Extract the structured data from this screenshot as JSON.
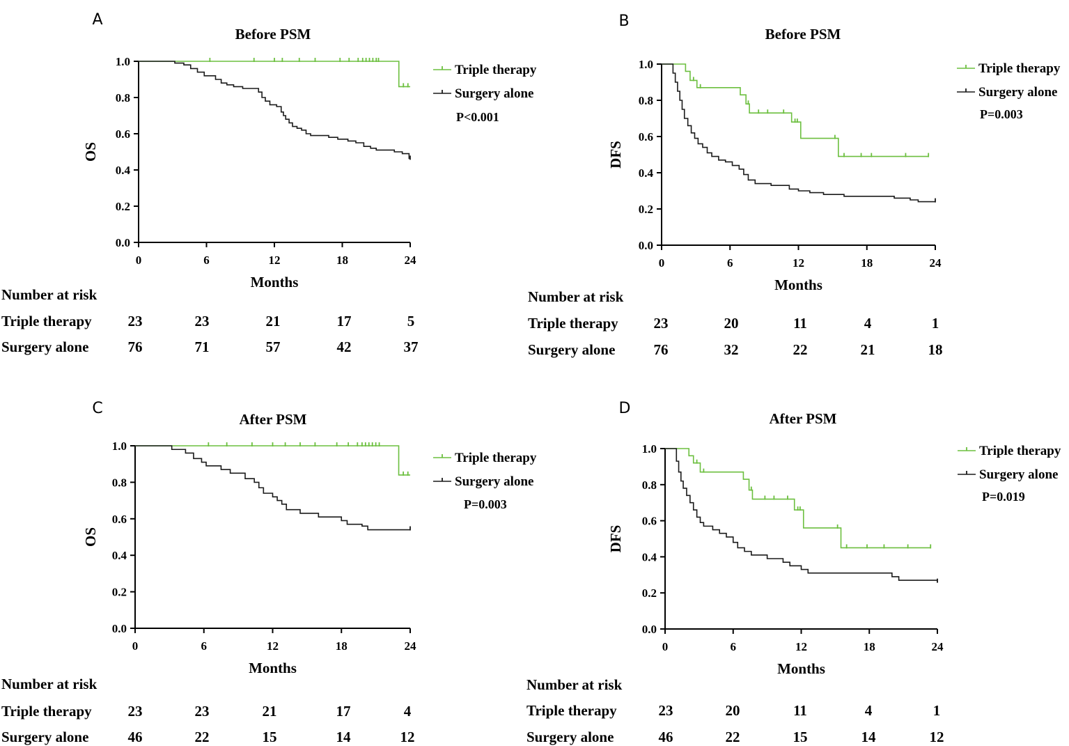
{
  "chart_data": [
    {
      "type": "line",
      "panel": "A",
      "title": "Before PSM",
      "xlabel": "Months",
      "ylabel": "OS",
      "xlim": [
        0,
        24
      ],
      "ylim": [
        0.0,
        1.0
      ],
      "xticks": [
        "0",
        "6",
        "12",
        "18",
        "24"
      ],
      "yticks": [
        "0.0",
        "0.2",
        "0.4",
        "0.6",
        "0.8",
        "1.0"
      ],
      "pvalue": "P<0.001",
      "risk_title": "Number at risk",
      "series": [
        {
          "name": "Triple therapy",
          "color": "#6cbf3f",
          "steps": [
            [
              0,
              1.0
            ],
            [
              23.0,
              0.86
            ],
            [
              24,
              0.86
            ]
          ],
          "censor": [
            6.3,
            10.2,
            12.0,
            12.7,
            14.2,
            15.6,
            17.8,
            18.6,
            19.4,
            19.8,
            20.1,
            20.4,
            20.7,
            21.0,
            21.2,
            23.4,
            23.8
          ]
        },
        {
          "name": "Surgery alone",
          "color": "#1a1a1a",
          "steps": [
            [
              0,
              1.0
            ],
            [
              3.2,
              0.99
            ],
            [
              4.0,
              0.98
            ],
            [
              4.6,
              0.96
            ],
            [
              5.2,
              0.94
            ],
            [
              5.8,
              0.92
            ],
            [
              6.8,
              0.9
            ],
            [
              7.3,
              0.88
            ],
            [
              7.8,
              0.87
            ],
            [
              8.4,
              0.86
            ],
            [
              9.2,
              0.85
            ],
            [
              10.6,
              0.83
            ],
            [
              10.9,
              0.8
            ],
            [
              11.2,
              0.78
            ],
            [
              11.6,
              0.76
            ],
            [
              12.2,
              0.75
            ],
            [
              12.6,
              0.72
            ],
            [
              12.8,
              0.7
            ],
            [
              13.0,
              0.68
            ],
            [
              13.3,
              0.66
            ],
            [
              13.6,
              0.64
            ],
            [
              14.0,
              0.63
            ],
            [
              14.4,
              0.62
            ],
            [
              14.8,
              0.6
            ],
            [
              15.2,
              0.59
            ],
            [
              16.8,
              0.58
            ],
            [
              17.6,
              0.57
            ],
            [
              18.5,
              0.56
            ],
            [
              19.2,
              0.55
            ],
            [
              19.9,
              0.53
            ],
            [
              20.5,
              0.52
            ],
            [
              21.0,
              0.51
            ],
            [
              22.6,
              0.5
            ],
            [
              23.3,
              0.49
            ],
            [
              23.9,
              0.46
            ]
          ],
          "censor": [
            24
          ]
        }
      ],
      "risk": [
        {
          "label": "Triple therapy",
          "values": [
            "23",
            "23",
            "21",
            "17",
            "5"
          ]
        },
        {
          "label": "Surgery alone",
          "values": [
            "76",
            "71",
            "57",
            "42",
            "37"
          ]
        }
      ]
    },
    {
      "type": "line",
      "panel": "B",
      "title": "Before PSM",
      "xlabel": "Months",
      "ylabel": "DFS",
      "xlim": [
        0,
        24
      ],
      "ylim": [
        0.0,
        1.0
      ],
      "xticks": [
        "0",
        "6",
        "12",
        "18",
        "24"
      ],
      "yticks": [
        "0.0",
        "0.2",
        "0.4",
        "0.6",
        "0.8",
        "1.0"
      ],
      "pvalue": "P=0.003",
      "risk_title": "Number at risk",
      "series": [
        {
          "name": "Triple therapy",
          "color": "#6cbf3f",
          "steps": [
            [
              0,
              1.0
            ],
            [
              2.1,
              0.96
            ],
            [
              2.5,
              0.91
            ],
            [
              3.1,
              0.87
            ],
            [
              6.9,
              0.83
            ],
            [
              7.4,
              0.78
            ],
            [
              7.7,
              0.73
            ],
            [
              11.4,
              0.68
            ],
            [
              12.2,
              0.59
            ],
            [
              15.5,
              0.49
            ],
            [
              23.4,
              0.49
            ]
          ],
          "censor": [
            2.8,
            3.4,
            7.6,
            8.5,
            9.3,
            10.7,
            11.7,
            11.9,
            15.2,
            16.0,
            17.5,
            18.4,
            21.4,
            23.4
          ]
        },
        {
          "name": "Surgery alone",
          "color": "#1a1a1a",
          "steps": [
            [
              0,
              1.0
            ],
            [
              1.0,
              0.95
            ],
            [
              1.2,
              0.9
            ],
            [
              1.4,
              0.85
            ],
            [
              1.6,
              0.8
            ],
            [
              1.8,
              0.75
            ],
            [
              2.0,
              0.7
            ],
            [
              2.3,
              0.66
            ],
            [
              2.6,
              0.62
            ],
            [
              2.9,
              0.59
            ],
            [
              3.2,
              0.56
            ],
            [
              3.6,
              0.54
            ],
            [
              4.0,
              0.51
            ],
            [
              4.4,
              0.49
            ],
            [
              5.0,
              0.47
            ],
            [
              5.6,
              0.46
            ],
            [
              6.2,
              0.44
            ],
            [
              6.8,
              0.42
            ],
            [
              7.2,
              0.39
            ],
            [
              7.6,
              0.36
            ],
            [
              8.2,
              0.34
            ],
            [
              9.6,
              0.33
            ],
            [
              11.2,
              0.31
            ],
            [
              12.0,
              0.3
            ],
            [
              13.0,
              0.29
            ],
            [
              14.2,
              0.28
            ],
            [
              16.0,
              0.27
            ],
            [
              20.4,
              0.26
            ],
            [
              21.8,
              0.25
            ],
            [
              22.5,
              0.24
            ],
            [
              24,
              0.24
            ]
          ],
          "censor": [
            24
          ]
        }
      ],
      "risk": [
        {
          "label": "Triple therapy",
          "values": [
            "23",
            "20",
            "11",
            "4",
            "1"
          ]
        },
        {
          "label": "Surgery alone",
          "values": [
            "76",
            "32",
            "22",
            "21",
            "18"
          ]
        }
      ]
    },
    {
      "type": "line",
      "panel": "C",
      "title": "After PSM",
      "xlabel": "Months",
      "ylabel": "OS",
      "xlim": [
        0,
        24
      ],
      "ylim": [
        0.0,
        1.0
      ],
      "xticks": [
        "0",
        "6",
        "12",
        "18",
        "24"
      ],
      "yticks": [
        "0.0",
        "0.2",
        "0.4",
        "0.6",
        "0.8",
        "1.0"
      ],
      "pvalue": "P=0.003",
      "risk_title": "Number at risk",
      "series": [
        {
          "name": "Triple therapy",
          "color": "#6cbf3f",
          "steps": [
            [
              0,
              1.0
            ],
            [
              23.0,
              0.84
            ],
            [
              24,
              0.84
            ]
          ],
          "censor": [
            6.4,
            8.0,
            10.2,
            12.0,
            13.1,
            14.4,
            15.7,
            17.6,
            18.6,
            19.4,
            19.8,
            20.1,
            20.4,
            20.7,
            21.0,
            21.3,
            23.4,
            23.8
          ]
        },
        {
          "name": "Surgery alone",
          "color": "#1a1a1a",
          "steps": [
            [
              0,
              1.0
            ],
            [
              3.2,
              0.98
            ],
            [
              4.4,
              0.96
            ],
            [
              5.1,
              0.93
            ],
            [
              5.8,
              0.91
            ],
            [
              6.2,
              0.89
            ],
            [
              7.5,
              0.87
            ],
            [
              8.3,
              0.85
            ],
            [
              9.6,
              0.82
            ],
            [
              10.4,
              0.8
            ],
            [
              10.8,
              0.77
            ],
            [
              11.2,
              0.74
            ],
            [
              12.0,
              0.72
            ],
            [
              12.4,
              0.7
            ],
            [
              12.8,
              0.68
            ],
            [
              13.2,
              0.65
            ],
            [
              14.4,
              0.63
            ],
            [
              16.0,
              0.61
            ],
            [
              18.0,
              0.59
            ],
            [
              18.5,
              0.57
            ],
            [
              19.8,
              0.56
            ],
            [
              20.3,
              0.54
            ],
            [
              24,
              0.54
            ]
          ],
          "censor": [
            24
          ]
        }
      ],
      "risk": [
        {
          "label": "Triple therapy",
          "values": [
            "23",
            "23",
            "21",
            "17",
            "4"
          ]
        },
        {
          "label": "Surgery alone",
          "values": [
            "46",
            "22",
            "15",
            "14",
            "12"
          ]
        }
      ]
    },
    {
      "type": "line",
      "panel": "D",
      "title": "After PSM",
      "xlabel": "Months",
      "ylabel": "DFS",
      "xlim": [
        0,
        24
      ],
      "ylim": [
        0.0,
        1.0
      ],
      "xticks": [
        "0",
        "6",
        "12",
        "18",
        "24"
      ],
      "yticks": [
        "0.0",
        "0.2",
        "0.4",
        "0.6",
        "0.8",
        "1.0"
      ],
      "pvalue": "P=0.019",
      "risk_title": "Number at risk",
      "series": [
        {
          "name": "Triple therapy",
          "color": "#6cbf3f",
          "steps": [
            [
              0,
              1.0
            ],
            [
              2.1,
              0.96
            ],
            [
              2.5,
              0.92
            ],
            [
              3.1,
              0.87
            ],
            [
              6.9,
              0.83
            ],
            [
              7.4,
              0.77
            ],
            [
              7.7,
              0.72
            ],
            [
              11.4,
              0.66
            ],
            [
              12.2,
              0.56
            ],
            [
              15.5,
              0.45
            ],
            [
              23.4,
              0.45
            ]
          ],
          "censor": [
            2.8,
            3.4,
            7.6,
            8.8,
            9.6,
            10.8,
            11.7,
            11.9,
            15.2,
            16.0,
            17.8,
            19.3,
            21.4,
            23.4
          ]
        },
        {
          "name": "Surgery alone",
          "color": "#1a1a1a",
          "steps": [
            [
              0,
              1.0
            ],
            [
              1.0,
              0.93
            ],
            [
              1.2,
              0.87
            ],
            [
              1.4,
              0.82
            ],
            [
              1.6,
              0.78
            ],
            [
              1.9,
              0.74
            ],
            [
              2.2,
              0.7
            ],
            [
              2.5,
              0.66
            ],
            [
              2.8,
              0.62
            ],
            [
              3.1,
              0.59
            ],
            [
              3.4,
              0.57
            ],
            [
              4.2,
              0.55
            ],
            [
              4.8,
              0.53
            ],
            [
              5.4,
              0.51
            ],
            [
              6.0,
              0.48
            ],
            [
              6.4,
              0.45
            ],
            [
              7.0,
              0.43
            ],
            [
              7.6,
              0.41
            ],
            [
              9.0,
              0.39
            ],
            [
              10.4,
              0.37
            ],
            [
              11.0,
              0.35
            ],
            [
              12.0,
              0.33
            ],
            [
              12.6,
              0.31
            ],
            [
              20.0,
              0.29
            ],
            [
              20.6,
              0.27
            ],
            [
              24,
              0.26
            ]
          ],
          "censor": [
            24
          ]
        }
      ],
      "risk": [
        {
          "label": "Triple therapy",
          "values": [
            "23",
            "20",
            "11",
            "4",
            "1"
          ]
        },
        {
          "label": "Surgery alone",
          "values": [
            "46",
            "22",
            "15",
            "14",
            "12"
          ]
        }
      ]
    }
  ]
}
